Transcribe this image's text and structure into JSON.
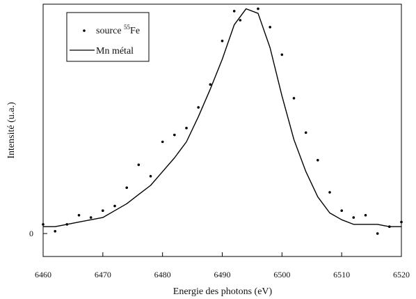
{
  "chart_data": {
    "type": "line",
    "xlabel": "Energie des photons (eV)",
    "ylabel": "Intensité (u.a.)",
    "xlim": [
      6460,
      6520
    ],
    "ylim": [
      -0.1,
      1.0
    ],
    "grid": false,
    "legend_position": "top-left",
    "x_ticks": [
      6460,
      6470,
      6480,
      6490,
      6500,
      6510,
      6520
    ],
    "x_tick_labels": [
      "6460",
      "6470",
      "6480",
      "6490",
      "6500",
      "6510",
      "6520"
    ],
    "y_ticks": [
      0
    ],
    "y_tick_labels": [
      "0"
    ],
    "series": [
      {
        "name": "source ⁵⁵Fe",
        "style": "scatter",
        "color": "#000000",
        "x": [
          6460,
          6462,
          6464,
          6466,
          6468,
          6470,
          6472,
          6474,
          6476,
          6478,
          6480,
          6482,
          6484,
          6486,
          6488,
          6490,
          6492,
          6493,
          6496,
          6498,
          6500,
          6502,
          6504,
          6506,
          6508,
          6510,
          6512,
          6514,
          6516,
          6518,
          6520
        ],
        "y": [
          0.04,
          0.01,
          0.04,
          0.08,
          0.07,
          0.1,
          0.12,
          0.2,
          0.3,
          0.25,
          0.4,
          0.43,
          0.46,
          0.55,
          0.65,
          0.84,
          0.97,
          0.93,
          0.98,
          0.9,
          0.78,
          0.59,
          0.44,
          0.32,
          0.18,
          0.1,
          0.07,
          0.08,
          0.0,
          0.03,
          0.05
        ]
      },
      {
        "name": "Mn métal",
        "style": "line",
        "color": "#000000",
        "x": [
          6460,
          6462,
          6464,
          6466,
          6468,
          6470,
          6472,
          6474,
          6476,
          6478,
          6480,
          6482,
          6484,
          6486,
          6488,
          6490,
          6492,
          6494,
          6496,
          6498,
          6500,
          6502,
          6504,
          6506,
          6508,
          6510,
          6512,
          6514,
          6516,
          6518,
          6520
        ],
        "y": [
          0.03,
          0.03,
          0.04,
          0.05,
          0.06,
          0.07,
          0.1,
          0.13,
          0.17,
          0.21,
          0.27,
          0.33,
          0.4,
          0.51,
          0.63,
          0.76,
          0.91,
          0.98,
          0.96,
          0.81,
          0.6,
          0.41,
          0.27,
          0.16,
          0.09,
          0.06,
          0.04,
          0.04,
          0.04,
          0.03,
          0.03
        ]
      }
    ],
    "legend": [
      {
        "marker": "dot",
        "label": "source ",
        "superscript": "55",
        "label_suffix": "Fe"
      },
      {
        "marker": "line",
        "label": "Mn métal"
      }
    ]
  }
}
